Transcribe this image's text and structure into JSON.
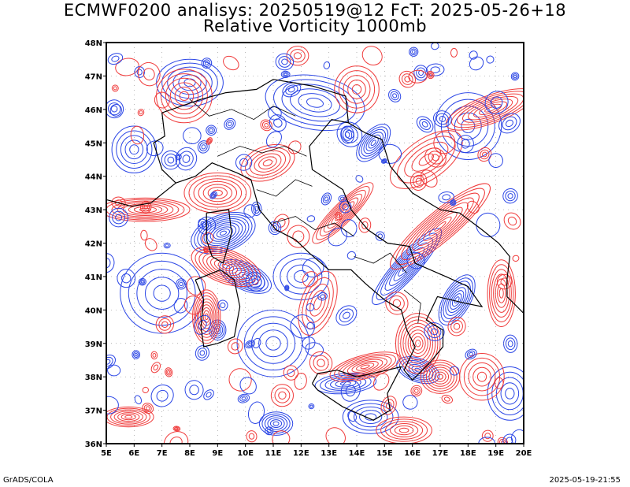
{
  "title": {
    "line1": "ECMWF0200 analisys: 20250519@12 FcT: 2025-05-26+18",
    "line2": "Relative Vorticity 1000mb"
  },
  "map": {
    "lon_range": [
      5,
      20
    ],
    "lat_range": [
      36,
      48
    ],
    "lon_ticks": [
      "5E",
      "6E",
      "7E",
      "8E",
      "9E",
      "10E",
      "11E",
      "12E",
      "13E",
      "14E",
      "15E",
      "16E",
      "17E",
      "18E",
      "19E",
      "20E"
    ],
    "lat_ticks": [
      "36N",
      "37N",
      "38N",
      "39N",
      "40N",
      "41N",
      "42N",
      "43N",
      "44N",
      "45N",
      "46N",
      "47N",
      "48N"
    ],
    "positive_color": "#f03c3c",
    "negative_color": "#2b46e6",
    "coast_color": "#000000",
    "grid": "dotted"
  },
  "footer": {
    "left": "GrADS/COLA",
    "right": "2025-05-19-21:55"
  }
}
